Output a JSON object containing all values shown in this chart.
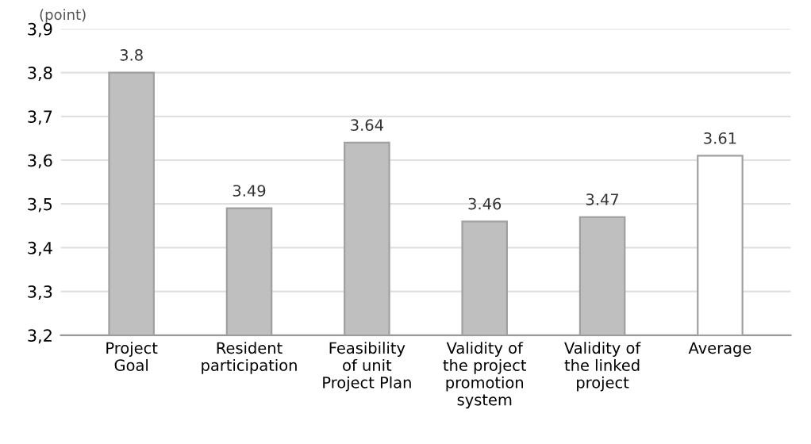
{
  "chart_data": {
    "type": "bar",
    "ylabel": "(point)",
    "categories": [
      "Project\nGoal",
      "Resident\nparticipation",
      "Feasibility\nof unit\nProject Plan",
      "Validity of\nthe project\npromotion\nsystem",
      "Validity of\nthe linked\nproject",
      "Average"
    ],
    "values": [
      3.8,
      3.49,
      3.64,
      3.46,
      3.47,
      3.61
    ],
    "value_labels": [
      "3.8",
      "3.49",
      "3.64",
      "3.46",
      "3.47",
      "3.61"
    ],
    "colors": [
      "#bfbfbf",
      "#bfbfbf",
      "#bfbfbf",
      "#bfbfbf",
      "#bfbfbf",
      "#ffffff"
    ],
    "ylim": [
      3.2,
      3.9
    ],
    "yticks": [
      {
        "value": 3.2,
        "label": "3,2"
      },
      {
        "value": 3.3,
        "label": "3,3"
      },
      {
        "value": 3.4,
        "label": "3,4"
      },
      {
        "value": 3.5,
        "label": "3,5"
      },
      {
        "value": 3.6,
        "label": "3,6"
      },
      {
        "value": 3.7,
        "label": "3,7"
      },
      {
        "value": 3.8,
        "label": "3,8"
      },
      {
        "value": 3.9,
        "label": "3,9"
      }
    ],
    "grid": "y",
    "legend": false
  }
}
